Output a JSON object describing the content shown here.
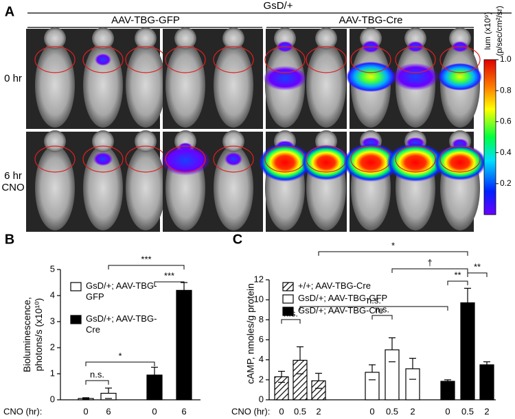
{
  "panel_labels": [
    "A",
    "B",
    "C"
  ],
  "panel_a": {
    "group_title": "GsD/+",
    "conditions": [
      "AAV-TBG-GFP",
      "AAV-TBG-Cre"
    ],
    "rows": [
      "0 hr",
      "6 hr CNO"
    ],
    "colorbar": {
      "label_lines": [
        "lum (x10⁹)",
        "(p/sec/cm²/sr)"
      ],
      "clim": [
        0,
        1
      ],
      "ticks": [
        0.2,
        0.4,
        0.6,
        0.8,
        {
          "value": 1,
          "label": "1.0"
        }
      ]
    }
  },
  "chart_data": [
    {
      "type": "bar",
      "ylabel": "Bioluminescence, photons/s (x10¹⁰)",
      "xlabel": "CNO (hr):",
      "categories": [
        "0",
        "6",
        "0",
        "6"
      ],
      "series": [
        {
          "name": "GsD/+; AAV-TBG-GFP",
          "color": "#ffffff",
          "values": [
            0.05,
            0.25,
            null,
            null
          ],
          "errors": [
            0.03,
            0.2,
            null,
            null
          ]
        },
        {
          "name": "GsD/+; AAV-TBG-Cre",
          "color": "#000000",
          "values": [
            null,
            null,
            0.95,
            4.2
          ],
          "errors": [
            null,
            null,
            0.3,
            0.3
          ]
        }
      ],
      "ylim": [
        0,
        5
      ],
      "yticks": [
        0,
        1,
        2,
        3,
        4,
        5
      ],
      "annotations": [
        "n.s.",
        "*",
        "***",
        "***"
      ]
    },
    {
      "type": "bar",
      "ylabel": "cAMP, nmoles/g protein",
      "xlabel": "CNO (hr):",
      "categories": [
        "0",
        "0.5",
        "2",
        "0",
        "0.5",
        "2",
        "0",
        "0.5",
        "2"
      ],
      "series": [
        {
          "name": "+/+; AAV-TBG-Cre",
          "color": "#000000",
          "hatch": true,
          "values": [
            2.3,
            3.95,
            1.9,
            null,
            null,
            null,
            null,
            null,
            null
          ],
          "errors": [
            0.55,
            1.35,
            0.75,
            null,
            null,
            null,
            null,
            null,
            null
          ]
        },
        {
          "name": "GsD/+; AAV-TBG-GFP",
          "color": "#ffffff",
          "values": [
            null,
            null,
            null,
            2.75,
            5.0,
            3.1,
            null,
            null,
            null
          ],
          "errors": [
            null,
            null,
            null,
            0.75,
            1.2,
            1.05,
            null,
            null,
            null
          ]
        },
        {
          "name": "GsD/+; AAV-TBG-Cre",
          "color": "#000000",
          "values": [
            null,
            null,
            null,
            null,
            null,
            null,
            1.85,
            9.7,
            3.5
          ],
          "errors": [
            null,
            null,
            null,
            null,
            null,
            null,
            0.15,
            1.45,
            0.3
          ]
        }
      ],
      "ylim": [
        0,
        12
      ],
      "yticks": [
        0,
        2,
        4,
        6,
        8,
        10,
        12
      ],
      "annotations": [
        "*",
        "†",
        "**",
        "**",
        "n.s.",
        "n.s.",
        "n.s."
      ]
    }
  ]
}
